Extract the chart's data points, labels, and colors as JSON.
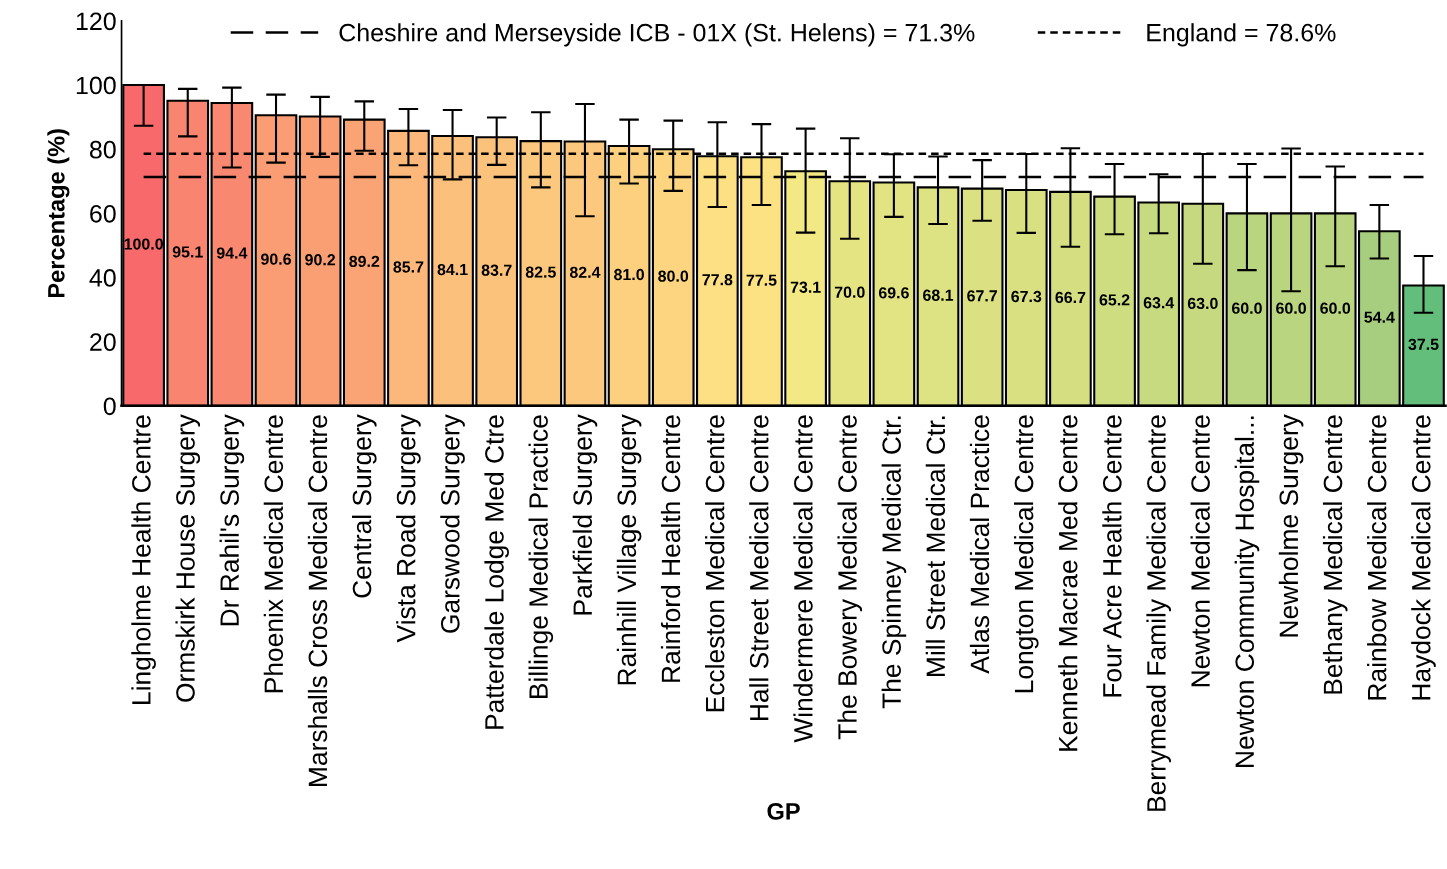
{
  "chart_data": {
    "type": "bar",
    "xlabel": "GP",
    "ylabel": "Percentage (%)",
    "categories": [
      "Lingholme Health Centre",
      "Ormskirk House Surgery",
      "Dr Rahil's Surgery",
      "Phoenix Medical Centre",
      "Marshalls Cross Medical Centre",
      "Central Surgery",
      "Vista Road Surgery",
      "Garswood Surgery",
      "Patterdale Lodge Med Ctre",
      "Billinge Medical Practice",
      "Parkfield Surgery",
      "Rainhill Village Surgery",
      "Rainford Health Centre",
      "Eccleston Medical Centre",
      "Hall Street Medical Centre",
      "Windermere Medical Centre",
      "The Bowery Medical Centre",
      "The Spinney Medical Ctr.",
      "Mill Street Medical Ctr.",
      "Atlas Medical Practice",
      "Longton Medical Centre",
      "Kenneth Macrae Med Centre",
      "Four Acre Health Centre",
      "Berrymead Family Medical Centre",
      "Newton Medical Centre",
      "Newton Community Hospital...",
      "Newholme Surgery",
      "Bethany Medical Centre",
      "Rainbow Medical Centre",
      "Haydock Medical Centre"
    ],
    "values": [
      100.0,
      95.1,
      94.4,
      90.6,
      90.2,
      89.2,
      85.7,
      84.1,
      83.7,
      82.5,
      82.4,
      81.0,
      80.0,
      77.8,
      77.5,
      73.1,
      70.0,
      69.6,
      68.1,
      67.7,
      67.3,
      66.7,
      65.2,
      63.4,
      63.0,
      60.0,
      60.0,
      60.0,
      54.4,
      37.5
    ],
    "errors": [
      [
        87.3,
        100.0
      ],
      [
        84.0,
        98.8
      ],
      [
        74.3,
        99.2
      ],
      [
        75.8,
        97.0
      ],
      [
        77.6,
        96.3
      ],
      [
        79.5,
        94.9
      ],
      [
        75.0,
        92.5
      ],
      [
        70.6,
        92.2
      ],
      [
        75.1,
        89.9
      ],
      [
        68.1,
        91.5
      ],
      [
        59.1,
        94.1
      ],
      [
        69.3,
        89.2
      ],
      [
        67.0,
        88.9
      ],
      [
        62.0,
        88.4
      ],
      [
        62.6,
        87.8
      ],
      [
        54.0,
        86.4
      ],
      [
        52.1,
        83.4
      ],
      [
        58.9,
        78.4
      ],
      [
        56.7,
        77.7
      ],
      [
        57.7,
        76.6
      ],
      [
        53.9,
        78.5
      ],
      [
        49.6,
        80.3
      ],
      [
        53.5,
        75.4
      ],
      [
        53.8,
        72.2
      ],
      [
        44.3,
        78.5
      ],
      [
        42.3,
        75.4
      ],
      [
        35.7,
        80.2
      ],
      [
        43.5,
        74.6
      ],
      [
        45.9,
        62.6
      ],
      [
        29.0,
        46.7
      ]
    ],
    "colors": [
      "#f8696b",
      "#f98570",
      "#f98870",
      "#fa9d74",
      "#fa9f74",
      "#faa475",
      "#fbb87a",
      "#fbc07c",
      "#fbc27c",
      "#fcc87e",
      "#fcc87e",
      "#fcd07f",
      "#fdd581",
      "#fde083",
      "#fde283",
      "#f2e884",
      "#e4e483",
      "#e2e383",
      "#dde282",
      "#dbe182",
      "#d9e082",
      "#d5df81",
      "#cfdd81",
      "#c8da80",
      "#c6d980",
      "#bad57f",
      "#bad57f",
      "#bad57f",
      "#a6ce7e",
      "#63be7b"
    ],
    "value_labels": [
      "100.0",
      "95.1",
      "94.4",
      "90.6",
      "90.2",
      "89.2",
      "85.7",
      "84.1",
      "83.7",
      "82.5",
      "82.4",
      "81.0",
      "80.0",
      "77.8",
      "77.5",
      "73.1",
      "70.0",
      "69.6",
      "68.1",
      "67.7",
      "67.3",
      "66.7",
      "65.2",
      "63.4",
      "63.0",
      "60.0",
      "60.0",
      "60.0",
      "54.4",
      "37.5"
    ],
    "ylim": [
      0,
      120
    ],
    "yticks": [
      0,
      20,
      40,
      60,
      80,
      100,
      120
    ],
    "ref_lines": [
      {
        "axis": "y",
        "value": 71.3,
        "label": "Cheshire and Merseyside ICB - 01X (St. Helens) = 71.3%",
        "color": "#000000",
        "line_style": "dashed"
      },
      {
        "axis": "y",
        "value": 78.6,
        "label": "England = 78.6%",
        "color": "#000000",
        "line_style": "dotted"
      }
    ],
    "legend": "top",
    "grid": false
  }
}
